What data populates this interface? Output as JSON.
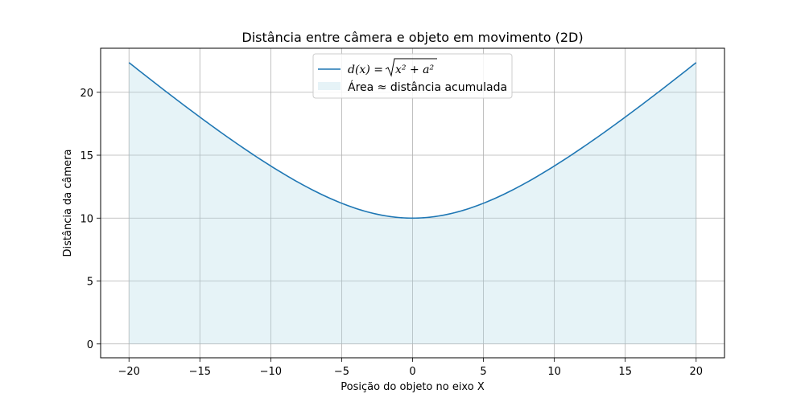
{
  "chart_data": {
    "type": "area",
    "title": "Distância entre câmera e objeto em movimento (2D)",
    "xlabel": "Posição do objeto no eixo X",
    "ylabel": "Distância da câmera",
    "xlim": [
      -22,
      22
    ],
    "ylim": [
      -1.1,
      23.5
    ],
    "xticks": [
      -20,
      -15,
      -10,
      -5,
      0,
      5,
      10,
      15,
      20
    ],
    "yticks": [
      0,
      5,
      10,
      15,
      20
    ],
    "grid": true,
    "legend_position": "top-center",
    "formula_a": 10,
    "x_range": [
      -20,
      20
    ],
    "series": [
      {
        "name": "d(x) = √(x² + a²)",
        "kind": "line",
        "color": "#1f77b4",
        "x": [
          -20,
          -17.5,
          -15,
          -12.5,
          -10,
          -7.5,
          -5,
          -2.5,
          0,
          2.5,
          5,
          7.5,
          10,
          12.5,
          15,
          17.5,
          20
        ],
        "y": [
          22.36,
          20.16,
          18.03,
          16.01,
          14.14,
          12.5,
          11.18,
          10.31,
          10,
          10.31,
          11.18,
          12.5,
          14.14,
          16.01,
          18.03,
          20.16,
          22.36
        ]
      },
      {
        "name": "Área ≈ distância acumulada",
        "kind": "area",
        "color": "#add8e6"
      }
    ],
    "legend": {
      "line_label": {
        "prefix": "d(x) = ",
        "radicand": "x² + a²"
      },
      "area_label": "Área ≈ distância acumulada"
    }
  }
}
